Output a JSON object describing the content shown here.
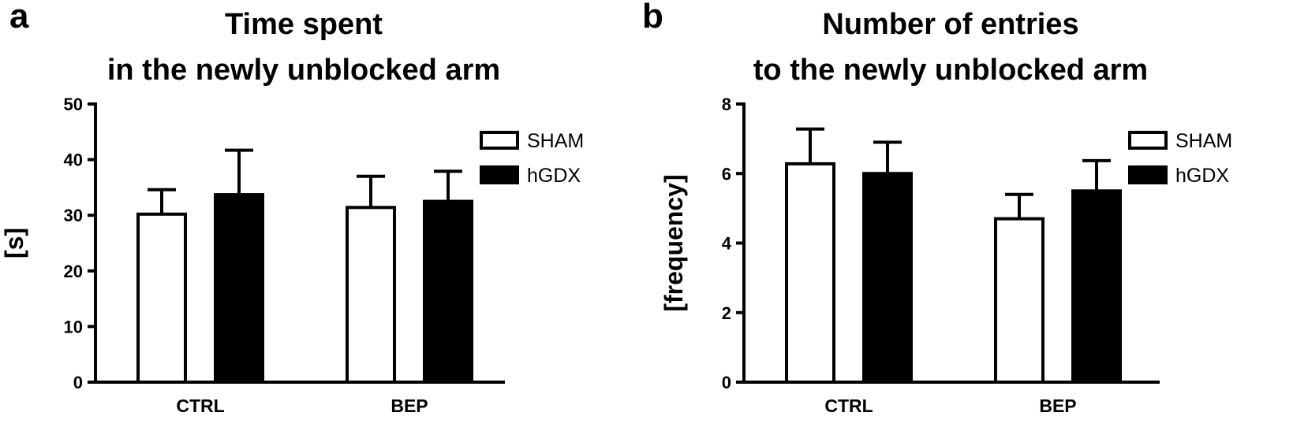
{
  "chart_data": [
    {
      "panel_label": "a",
      "type": "bar",
      "title_lines": [
        "Time spent",
        "in the newly unblocked arm"
      ],
      "ylabel": "[s]",
      "xlabel": "",
      "categories": [
        "CTRL",
        "BEP"
      ],
      "ylim": [
        0,
        50
      ],
      "yticks": [
        0,
        10,
        20,
        30,
        40,
        50
      ],
      "series": [
        {
          "name": "SHAM",
          "fill": "#ffffff",
          "values": [
            30.2,
            31.4
          ],
          "errors": [
            4.4,
            5.6
          ]
        },
        {
          "name": "hGDX",
          "fill": "#000000",
          "values": [
            33.7,
            32.5
          ],
          "errors": [
            8.0,
            5.4
          ]
        }
      ],
      "legend_position": "top-right",
      "grid": false
    },
    {
      "panel_label": "b",
      "type": "bar",
      "title_lines": [
        "Number of entries",
        "to the newly unblocked arm"
      ],
      "ylabel": "[frequency]",
      "xlabel": "",
      "categories": [
        "CTRL",
        "BEP"
      ],
      "ylim": [
        0,
        8
      ],
      "yticks": [
        0,
        2,
        4,
        6,
        8
      ],
      "series": [
        {
          "name": "SHAM",
          "fill": "#ffffff",
          "values": [
            6.28,
            4.7
          ],
          "errors": [
            1.0,
            0.7
          ]
        },
        {
          "name": "hGDX",
          "fill": "#000000",
          "values": [
            6.0,
            5.5
          ],
          "errors": [
            0.9,
            0.87
          ]
        }
      ],
      "legend_position": "top-right",
      "grid": false
    }
  ]
}
